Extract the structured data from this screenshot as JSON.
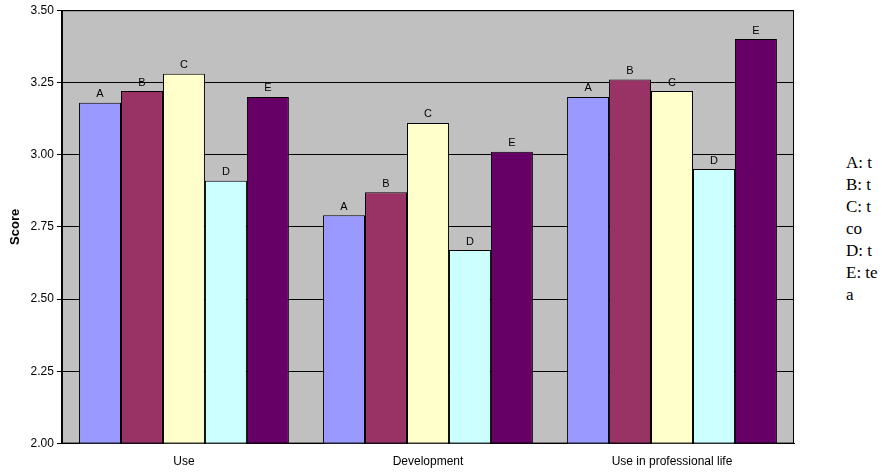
{
  "chart_data": {
    "type": "bar",
    "y_label": "Score",
    "categories": [
      "Use",
      "Development",
      "Use in professional life"
    ],
    "series": [
      {
        "name": "A: t",
        "annotation": "A",
        "color": "#9999ff",
        "values": [
          3.18,
          2.79,
          3.2
        ]
      },
      {
        "name": "B: t",
        "annotation": "B",
        "color": "#993366",
        "values": [
          3.22,
          2.87,
          3.26
        ]
      },
      {
        "name": "C: t\nco",
        "annotation": "C",
        "color": "#ffffcc",
        "values": [
          3.28,
          3.11,
          3.22
        ]
      },
      {
        "name": "D: t",
        "annotation": "D",
        "color": "#ccffff",
        "values": [
          2.91,
          2.67,
          2.95
        ]
      },
      {
        "name": "E: te\na",
        "annotation": "E",
        "color": "#660066",
        "values": [
          3.2,
          3.01,
          3.4
        ]
      }
    ],
    "ylim": [
      2,
      3.5
    ],
    "yticks": [
      {
        "value": 2,
        "label": "2.00"
      },
      2.25,
      {
        "value": 2.5,
        "label": "2.50"
      },
      2.75,
      {
        "value": 3,
        "label": "3.00"
      },
      3.25,
      {
        "value": 3.5,
        "label": "3.50"
      }
    ],
    "grid": true,
    "legend": "right"
  }
}
